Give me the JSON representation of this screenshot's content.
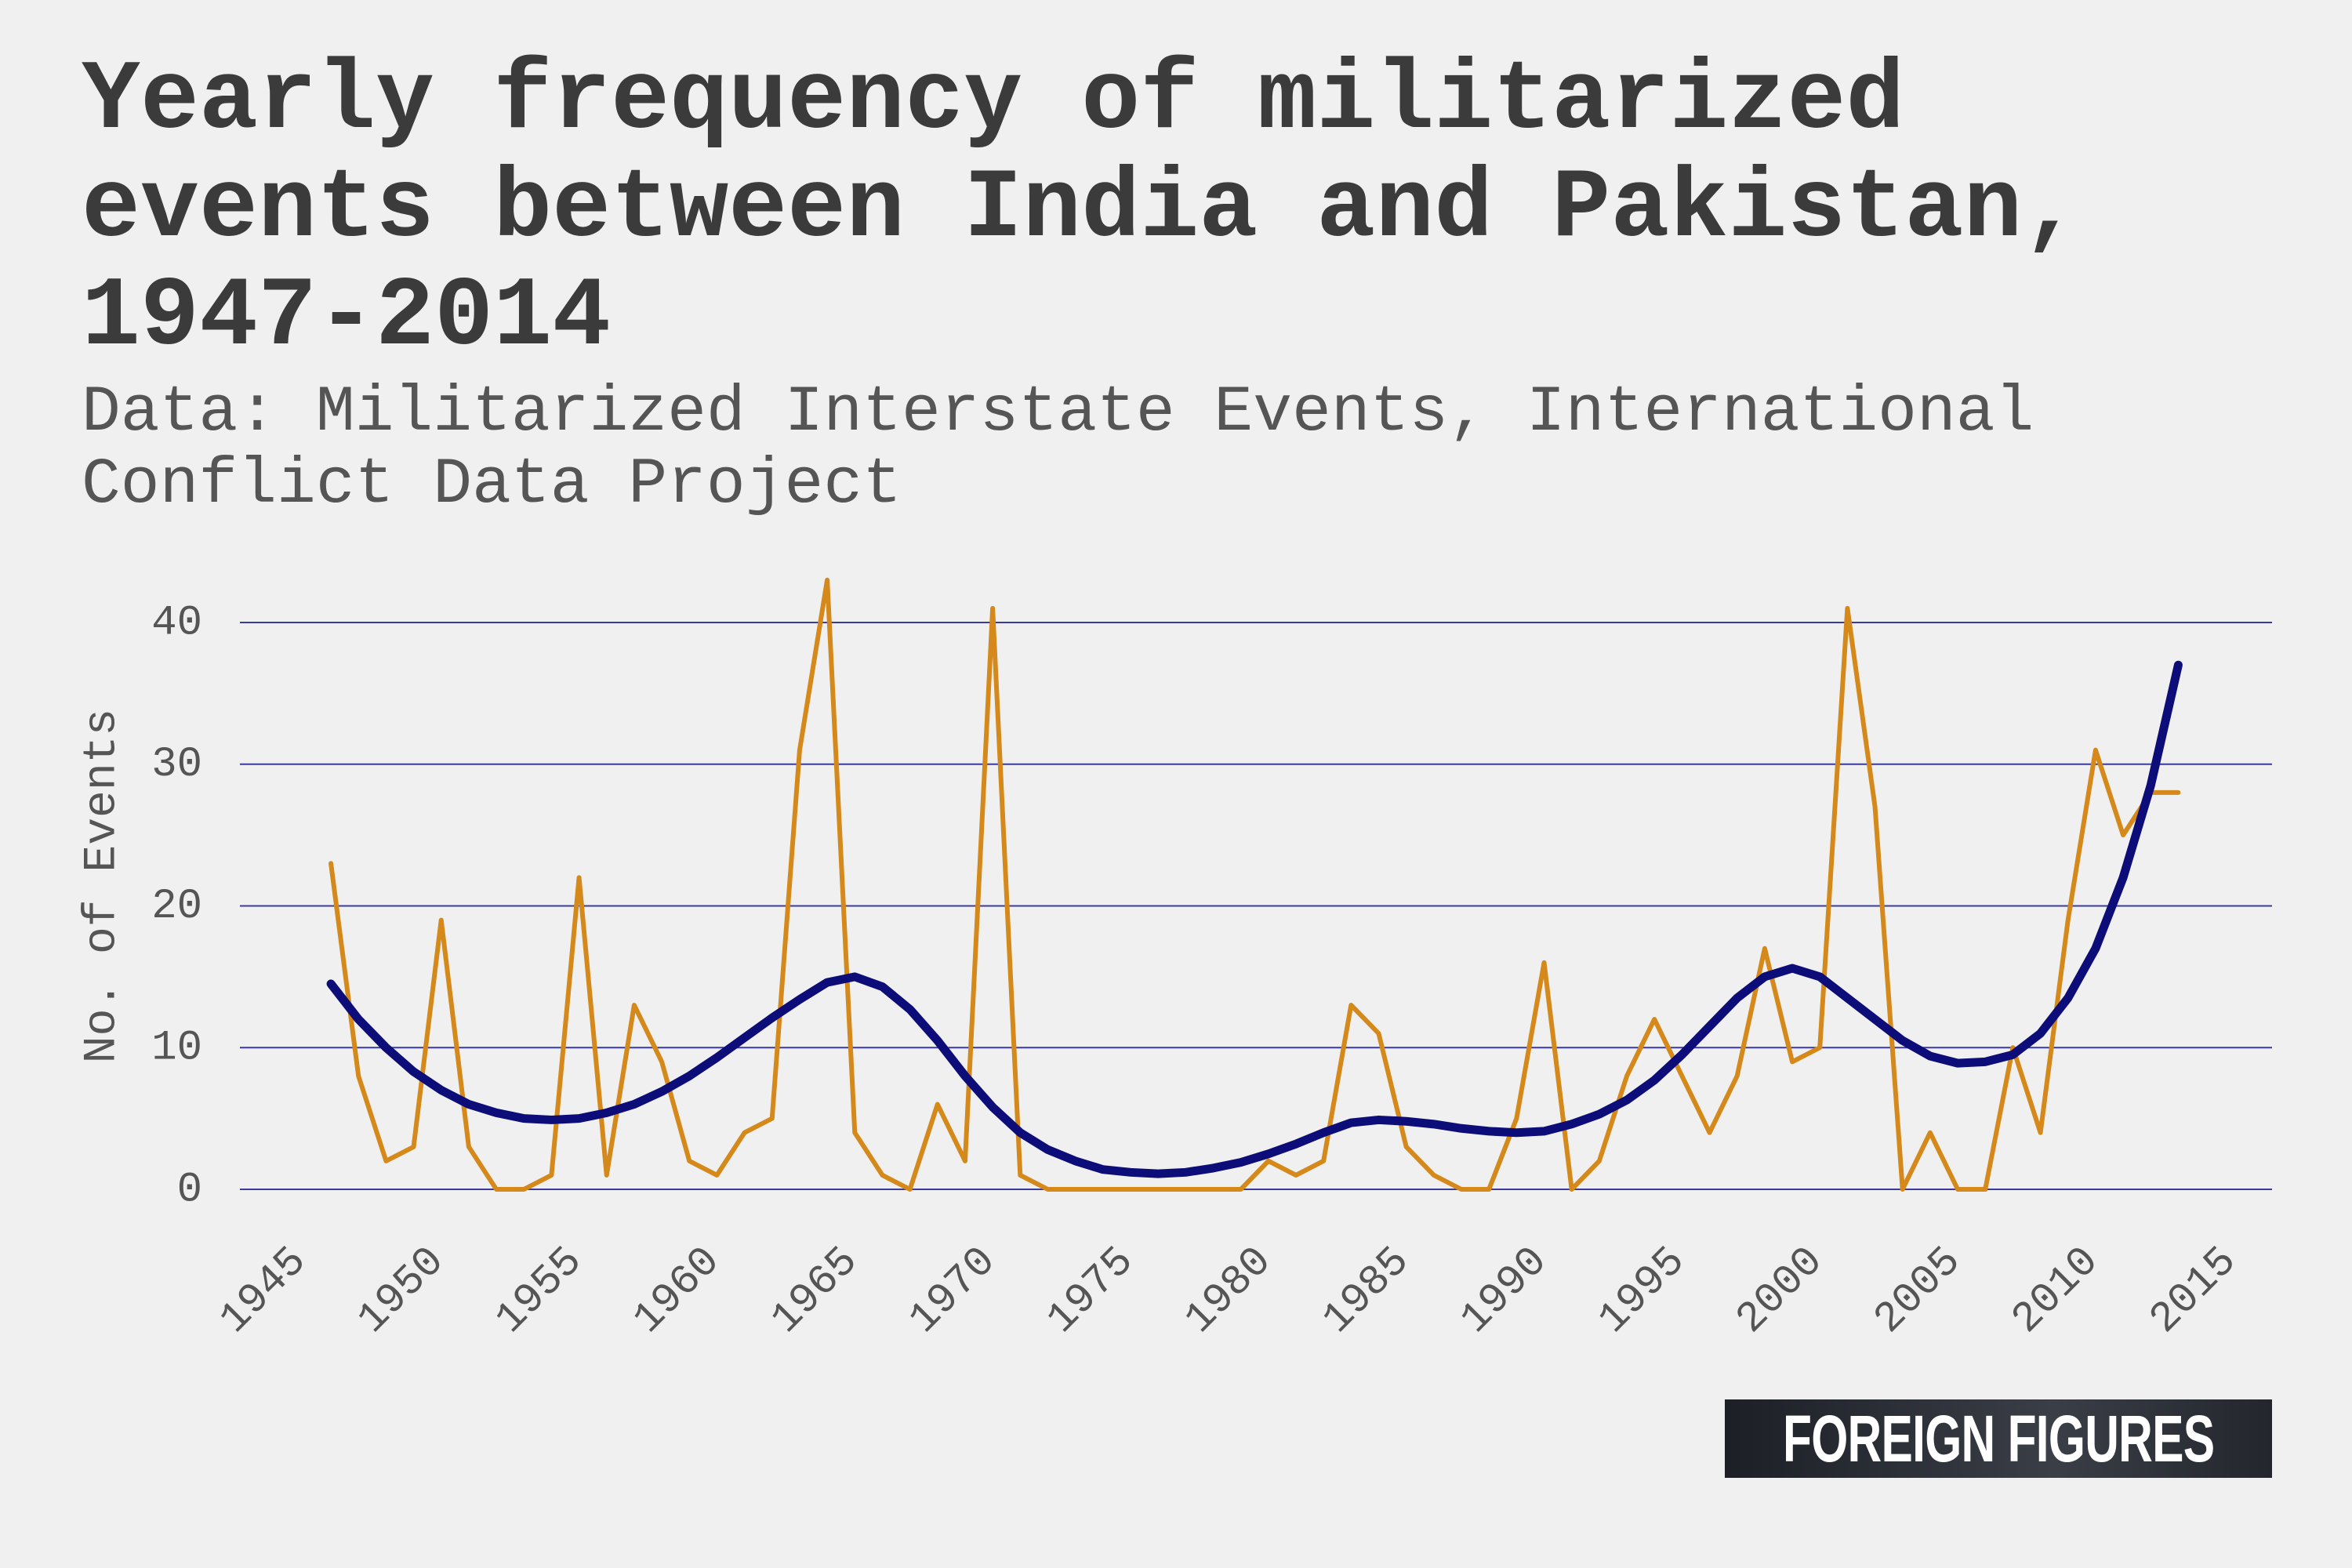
{
  "chart_data": {
    "type": "line",
    "title": "Yearly frequency of militarized events between India and Pakistan, 1947-2014",
    "subtitle": "Data: Militarized Interstate Events, International Conflict Data Project",
    "y_label": "No. of Events",
    "logo": "FOREIGN FIGURES",
    "x": [
      1947,
      1948,
      1949,
      1950,
      1951,
      1952,
      1953,
      1954,
      1955,
      1956,
      1957,
      1958,
      1959,
      1960,
      1961,
      1962,
      1963,
      1964,
      1965,
      1966,
      1967,
      1968,
      1969,
      1970,
      1971,
      1972,
      1973,
      1974,
      1975,
      1976,
      1977,
      1978,
      1979,
      1980,
      1981,
      1982,
      1983,
      1984,
      1985,
      1986,
      1987,
      1988,
      1989,
      1990,
      1991,
      1992,
      1993,
      1994,
      1995,
      1996,
      1997,
      1998,
      1999,
      2000,
      2001,
      2002,
      2003,
      2004,
      2005,
      2006,
      2007,
      2008,
      2009,
      2010,
      2011,
      2012,
      2013,
      2014
    ],
    "series": [
      {
        "color": "#d4891a",
        "values": [
          23,
          8,
          2,
          3,
          19,
          3,
          0,
          0,
          1,
          22,
          1,
          13,
          9,
          2,
          1,
          4,
          5,
          31,
          43,
          4,
          1,
          0,
          6,
          2,
          41,
          1,
          0,
          0,
          0,
          0,
          0,
          0,
          0,
          0,
          2,
          1,
          2,
          13,
          11,
          3,
          1,
          0,
          0,
          5,
          16,
          0,
          2,
          8,
          12,
          8,
          4,
          8,
          17,
          9,
          10,
          41,
          27,
          0,
          4,
          0,
          0,
          10,
          4,
          19,
          31,
          25,
          28,
          28
        ]
      },
      {
        "color": "#0d0d7a",
        "values": [
          14.5,
          12,
          10,
          8.3,
          7,
          6,
          5.4,
          5,
          4.9,
          5,
          5.4,
          6,
          6.9,
          8,
          9.3,
          10.7,
          12.1,
          13.4,
          14.6,
          15,
          14.3,
          12.7,
          10.5,
          8,
          5.8,
          4,
          2.8,
          2,
          1.4,
          1.2,
          1.1,
          1.2,
          1.5,
          1.9,
          2.5,
          3.2,
          4,
          4.7,
          4.9,
          4.8,
          4.6,
          4.3,
          4.1,
          4,
          4.1,
          4.6,
          5.3,
          6.3,
          7.7,
          9.5,
          11.5,
          13.5,
          15,
          15.6,
          15,
          13.5,
          12,
          10.5,
          9.4,
          8.9,
          9,
          9.5,
          11,
          13.5,
          17,
          22,
          28.5,
          37
        ]
      }
    ],
    "xlim": [
      1943.7,
      2017.4
    ],
    "xticks": [
      1945,
      1950,
      1955,
      1960,
      1965,
      1970,
      1975,
      1980,
      1985,
      1990,
      1995,
      2000,
      2005,
      2010,
      2015
    ],
    "ylim": [
      0,
      40
    ],
    "yticks": [
      0,
      10,
      20,
      30,
      40
    ],
    "grid": true
  }
}
